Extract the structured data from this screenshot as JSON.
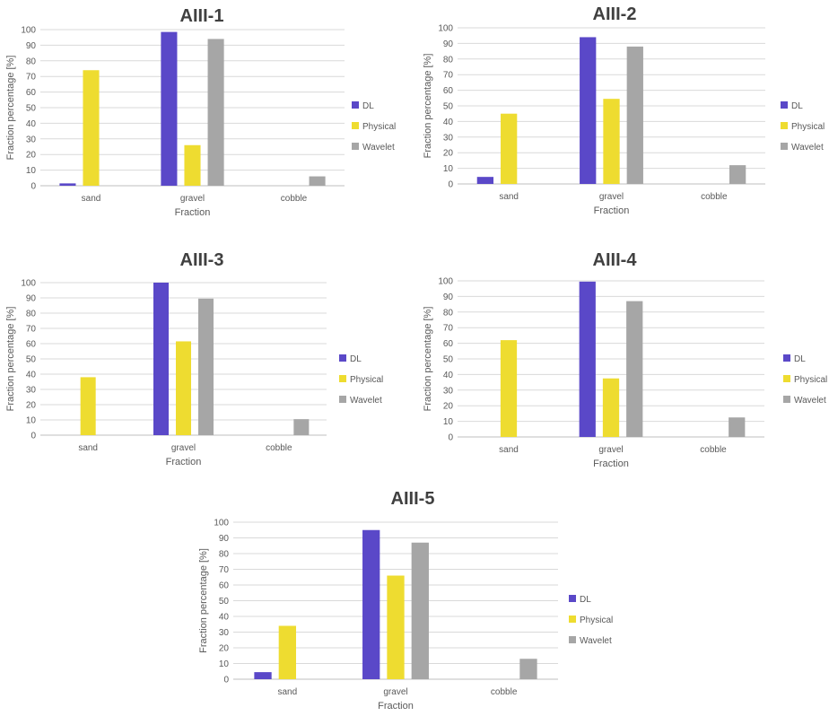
{
  "chart_data": [
    {
      "type": "bar",
      "title": "AIII-1",
      "xlabel": "Fraction",
      "ylabel": "Fraction percentage [%]",
      "categories": [
        "sand",
        "gravel",
        "cobble"
      ],
      "ylim": [
        0,
        100
      ],
      "yticks": [
        "0",
        "10",
        "20",
        "30",
        "40",
        "50",
        "60",
        "70",
        "80",
        "90",
        "100"
      ],
      "grid": true,
      "legend_position": "right",
      "series": [
        {
          "name": "DL",
          "color": "#5a48c8",
          "values": [
            1.5,
            98.5,
            0
          ]
        },
        {
          "name": "Physical",
          "color": "#eedc30",
          "values": [
            74,
            26,
            0
          ]
        },
        {
          "name": "Wavelet",
          "color": "#a6a6a6",
          "values": [
            0,
            94,
            6
          ]
        }
      ]
    },
    {
      "type": "bar",
      "title": "AIII-2",
      "xlabel": "Fraction",
      "ylabel": "Fraction percentage [%]",
      "categories": [
        "sand",
        "gravel",
        "cobble"
      ],
      "ylim": [
        0,
        100
      ],
      "yticks": [
        "0",
        "10",
        "20",
        "30",
        "40",
        "50",
        "60",
        "70",
        "80",
        "90",
        "100"
      ],
      "grid": true,
      "legend_position": "right",
      "series": [
        {
          "name": "DL",
          "color": "#5a48c8",
          "values": [
            4.5,
            94,
            0
          ]
        },
        {
          "name": "Physical",
          "color": "#eedc30",
          "values": [
            45,
            54.5,
            0
          ]
        },
        {
          "name": "Wavelet",
          "color": "#a6a6a6",
          "values": [
            0,
            88,
            12
          ]
        }
      ]
    },
    {
      "type": "bar",
      "title": "AIII-3",
      "xlabel": "Fraction",
      "ylabel": "Fraction percentage [%]",
      "categories": [
        "sand",
        "gravel",
        "cobble"
      ],
      "ylim": [
        0,
        100
      ],
      "yticks": [
        "0",
        "10",
        "20",
        "30",
        "40",
        "50",
        "60",
        "70",
        "80",
        "90",
        "100"
      ],
      "grid": true,
      "legend_position": "right",
      "series": [
        {
          "name": "DL",
          "color": "#5a48c8",
          "values": [
            0,
            100,
            0
          ]
        },
        {
          "name": "Physical",
          "color": "#eedc30",
          "values": [
            38,
            61.5,
            0
          ]
        },
        {
          "name": "Wavelet",
          "color": "#a6a6a6",
          "values": [
            0,
            89.5,
            10.5
          ]
        }
      ]
    },
    {
      "type": "bar",
      "title": "AIII-4",
      "xlabel": "Fraction",
      "ylabel": "Fraction percentage [%]",
      "categories": [
        "sand",
        "gravel",
        "cobble"
      ],
      "ylim": [
        0,
        100
      ],
      "yticks": [
        "0",
        "10",
        "20",
        "30",
        "40",
        "50",
        "60",
        "70",
        "80",
        "90",
        "100"
      ],
      "grid": true,
      "legend_position": "right",
      "series": [
        {
          "name": "DL",
          "color": "#5a48c8",
          "values": [
            0,
            99.5,
            0
          ]
        },
        {
          "name": "Physical",
          "color": "#eedc30",
          "values": [
            62,
            37.5,
            0
          ]
        },
        {
          "name": "Wavelet",
          "color": "#a6a6a6",
          "values": [
            0,
            87,
            12.5
          ]
        }
      ]
    },
    {
      "type": "bar",
      "title": "AIII-5",
      "xlabel": "Fraction",
      "ylabel": "Fraction percentage [%]",
      "categories": [
        "sand",
        "gravel",
        "cobble"
      ],
      "ylim": [
        0,
        100
      ],
      "yticks": [
        "0",
        "10",
        "20",
        "30",
        "40",
        "50",
        "60",
        "70",
        "80",
        "90",
        "100"
      ],
      "grid": true,
      "legend_position": "right",
      "series": [
        {
          "name": "DL",
          "color": "#5a48c8",
          "values": [
            4.5,
            95,
            0
          ]
        },
        {
          "name": "Physical",
          "color": "#eedc30",
          "values": [
            34,
            66,
            0
          ]
        },
        {
          "name": "Wavelet",
          "color": "#a6a6a6",
          "values": [
            0,
            87,
            13
          ]
        }
      ]
    }
  ]
}
